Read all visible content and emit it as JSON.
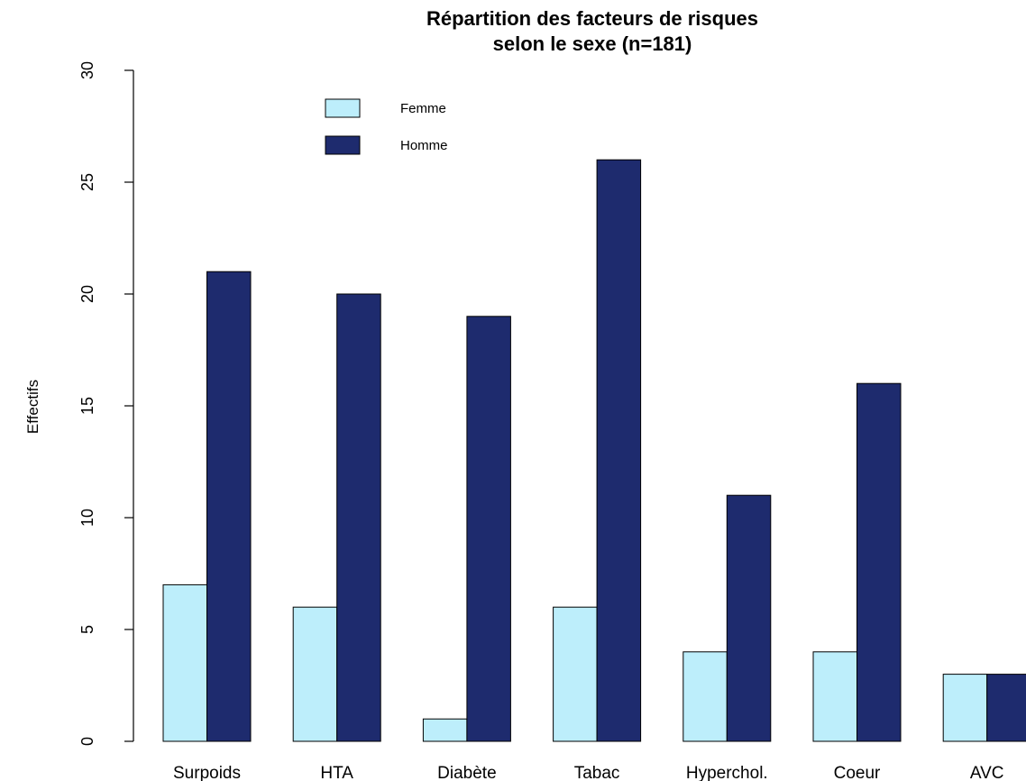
{
  "chart_data": {
    "type": "bar",
    "title": "Répartition des facteurs de risques",
    "subtitle": "selon le sexe (n=181)",
    "ylabel": "Effectifs",
    "xlabel": "",
    "ylim": [
      0,
      30
    ],
    "yticks": [
      "0",
      "5",
      "10",
      "15",
      "20",
      "25",
      "30"
    ],
    "categories": [
      "Surpoids",
      "HTA",
      "Diabète",
      "Tabac",
      "Hyperchol.",
      "Coeur",
      "AVC"
    ],
    "series": [
      {
        "name": "Femme",
        "color": "#bdeefb",
        "values": [
          7,
          6,
          1,
          6,
          4,
          4,
          3
        ]
      },
      {
        "name": "Homme",
        "color": "#1e2b6e",
        "values": [
          21,
          20,
          19,
          26,
          11,
          16,
          3
        ]
      }
    ],
    "legend_position": "top-left",
    "grid": false
  }
}
